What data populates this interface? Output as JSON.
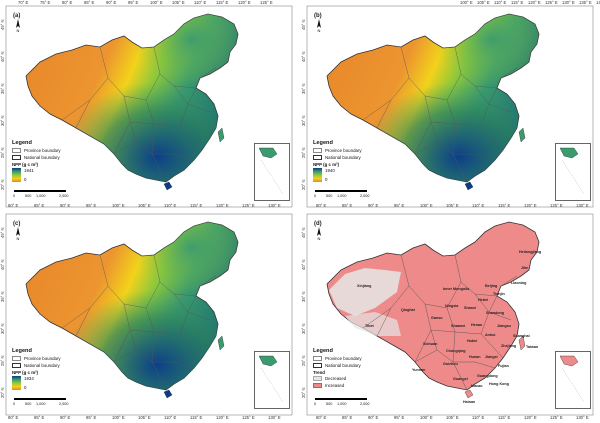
{
  "common": {
    "legend_title": "Legend",
    "province_boundary": "Province boundary",
    "national_boundary": "National boundary",
    "npp_label": "NPP (g c m²)",
    "scale": {
      "s0": "0",
      "s1": "500",
      "s2": "1,000",
      "s3": "2,000",
      "unit": "km"
    },
    "lon_labels": [
      "70° E",
      "75° E",
      "80° E",
      "85° E",
      "90° E",
      "95° E",
      "100° E",
      "105° E",
      "110° E",
      "115° E",
      "120° E",
      "125° E",
      "130° E",
      "135° E",
      "140° E"
    ],
    "lon_labels_bottom": [
      "80° E",
      "85° E",
      "90° E",
      "95° E",
      "100° E",
      "105° E",
      "110° E",
      "115° E",
      "120° E",
      "125° E",
      "130° E"
    ],
    "lat_labels": [
      "45° N",
      "40° N",
      "35° N",
      "30° N",
      "25° N",
      "20° N"
    ]
  },
  "panel_a": {
    "label": "(a)",
    "npp_high": "1941",
    "npp_low": "0"
  },
  "panel_b": {
    "label": "(b)",
    "npp_high": "1940",
    "npp_low": "0"
  },
  "panel_c": {
    "label": "(c)",
    "npp_high": "1934",
    "npp_low": "0"
  },
  "panel_d": {
    "label": "(d)",
    "trend_title": "Trend",
    "decreased": "Decreased",
    "increased": "Increased",
    "provinces": [
      "Heilongjiang",
      "Jilin",
      "Liaoning",
      "Beijing",
      "Tianjin",
      "Hebei",
      "Inner Mongolia",
      "Shanxi",
      "Shandong",
      "Ningxia",
      "Gansu",
      "Qinghai",
      "Shaanxi",
      "Henan",
      "Jiangsu",
      "Anhui",
      "Shanghai",
      "Hubei",
      "Sichuan",
      "Chongqing",
      "Zhejiang",
      "Hunan",
      "Jiangxi",
      "Guizhou",
      "Fujian",
      "Yunnan",
      "Guangxi",
      "Guangdong",
      "Hong Kong",
      "Macao",
      "Hainan",
      "Taiwan",
      "Xinjiang",
      "Tibet"
    ]
  },
  "colors": {
    "arid": "#e8852a",
    "semi_arid": "#f2d21a",
    "grass": "#8cc83c",
    "forest": "#3a9b6e",
    "dense_forest": "#0a3a8a",
    "trend_increase": "#ef8a8a",
    "trend_decrease": "#e6e6e6"
  }
}
